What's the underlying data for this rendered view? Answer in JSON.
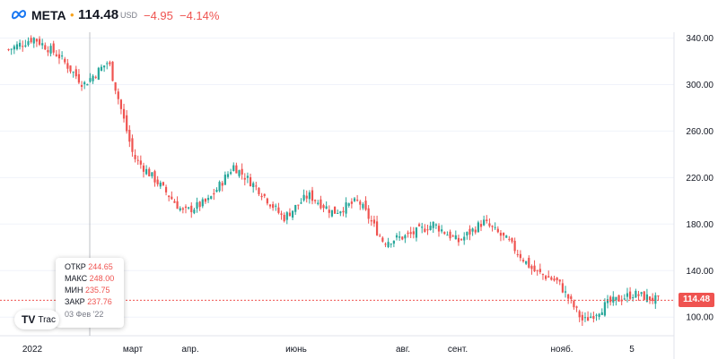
{
  "header": {
    "symbol": "META",
    "price": "114.48",
    "currency": "USD",
    "change": "−4.95",
    "change_pct": "−4.14%"
  },
  "colors": {
    "up": "#26a69a",
    "down": "#ef5350",
    "accent": "#f7a21b",
    "axis_text": "#131722"
  },
  "icons": [
    "meta-logo-icon",
    "tradingview-logo-icon"
  ],
  "tooltip": {
    "open_label": "ОТКР",
    "open_value": "244.65",
    "high_label": "МАКС",
    "high_value": "248.00",
    "low_label": "МИН",
    "low_value": "235.75",
    "close_label": "ЗАКР",
    "close_value": "237.76",
    "date": "03 Фев '22"
  },
  "tv_logo_label": "Trac",
  "last_price_tag": "114.48",
  "chart_data": {
    "type": "candlestick",
    "title": "",
    "ylim": [
      84,
      345
    ],
    "y_ticks": [
      100,
      140,
      180,
      220,
      260,
      300,
      340
    ],
    "y_tick_labels": [
      "100.00",
      "140.00",
      "180.00",
      "220.00",
      "260.00",
      "300.00",
      "340.00"
    ],
    "x_tick_labels": [
      "2022",
      "март",
      "апр.",
      "июнь",
      "авг.",
      "сент.",
      "нояб.",
      "5"
    ],
    "last_price": 114.48,
    "grid": true,
    "close_path_anchors": [
      {
        "month": "Jan 2022",
        "close": 330
      },
      {
        "month": "Jan 2022",
        "close": 340
      },
      {
        "month": "Jan 2022",
        "close": 325
      },
      {
        "month": "Jan 2022",
        "close": 300
      },
      {
        "month": "Feb 2022",
        "close": 320
      },
      {
        "month": "Feb 2022",
        "close": 237.76
      },
      {
        "month": "Feb 2022",
        "close": 215
      },
      {
        "month": "Mar 2022",
        "close": 190
      },
      {
        "month": "Mar 2022",
        "close": 200
      },
      {
        "month": "Apr 2022",
        "close": 230
      },
      {
        "month": "Apr 2022",
        "close": 210
      },
      {
        "month": "May 2022",
        "close": 185
      },
      {
        "month": "May 2022",
        "close": 205
      },
      {
        "month": "Jun 2022",
        "close": 190
      },
      {
        "month": "Jun 2022",
        "close": 200
      },
      {
        "month": "Jul 2022",
        "close": 165
      },
      {
        "month": "Jul 2022",
        "close": 170
      },
      {
        "month": "Aug 2022",
        "close": 180
      },
      {
        "month": "Aug 2022",
        "close": 165
      },
      {
        "month": "Sep 2022",
        "close": 182
      },
      {
        "month": "Sep 2022",
        "close": 165
      },
      {
        "month": "Oct 2022",
        "close": 140
      },
      {
        "month": "Oct 2022",
        "close": 130
      },
      {
        "month": "Nov 2022",
        "close": 96
      },
      {
        "month": "Nov 2022",
        "close": 112
      },
      {
        "month": "Dec 2022",
        "close": 120
      },
      {
        "month": "Dec 2022",
        "close": 114.48
      }
    ]
  }
}
